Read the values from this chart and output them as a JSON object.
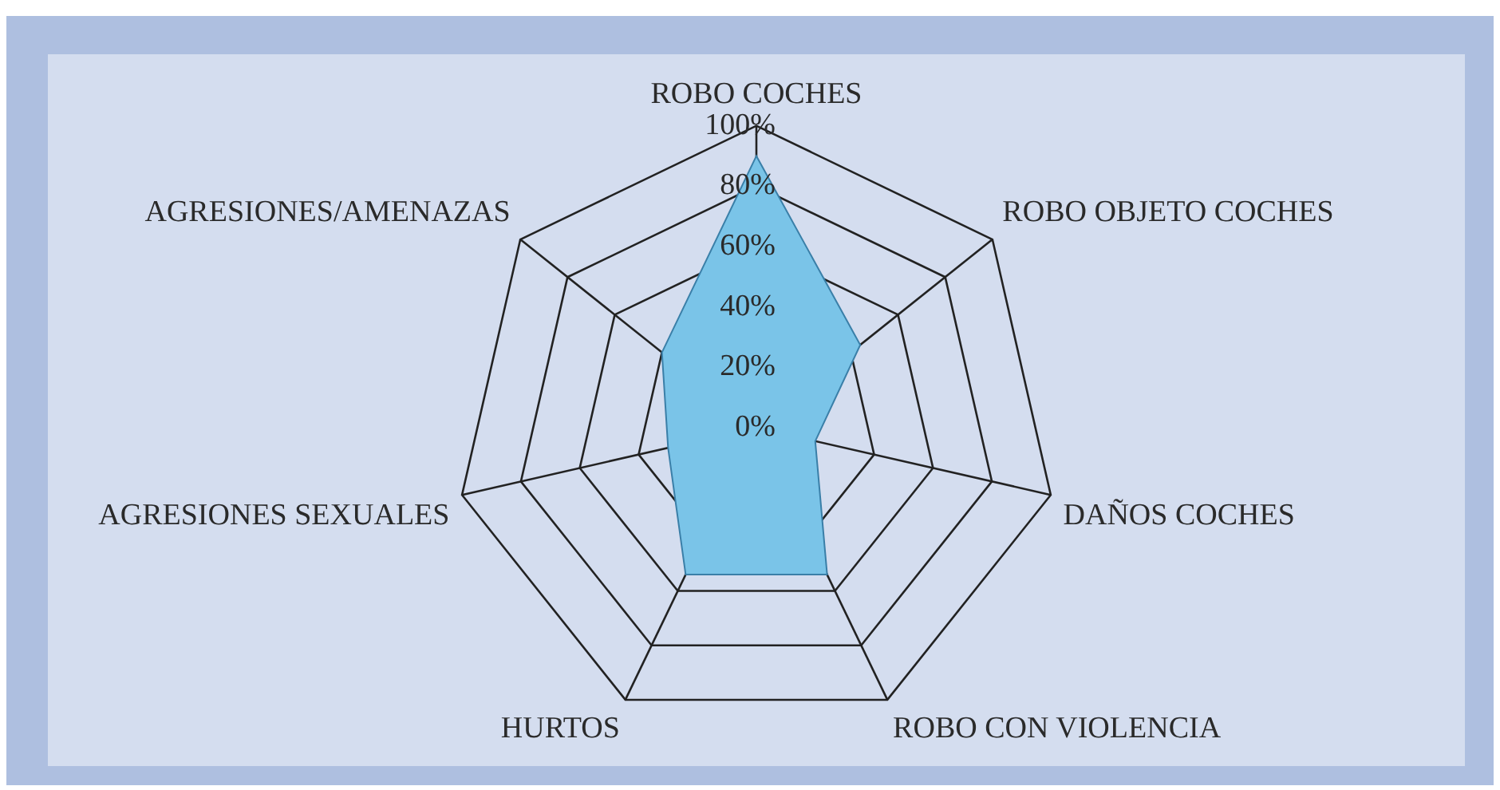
{
  "chart_data": {
    "type": "radar",
    "categories": [
      "ROBO COCHES",
      "ROBO OBJETO COCHES",
      "DAÑOS COCHES",
      "ROBO CON VIOLENCIA",
      "HURTOS",
      "AGRESIONES SEXUALES",
      "AGRESIONES/AMENAZAS"
    ],
    "series": [
      {
        "color": "#7ac4e8",
        "values": [
          90,
          44,
          20,
          54,
          54,
          30,
          40
        ]
      }
    ],
    "ylim": [
      0,
      100
    ],
    "yticks": [
      {
        "value": 0,
        "label": "0%"
      },
      {
        "value": 20,
        "label": "20%"
      },
      {
        "value": 40,
        "label": "40%"
      },
      {
        "value": 60,
        "label": "60%"
      },
      {
        "value": 80,
        "label": "80%"
      },
      {
        "value": 100,
        "label": "100%"
      }
    ],
    "grid": true,
    "legend": false
  }
}
